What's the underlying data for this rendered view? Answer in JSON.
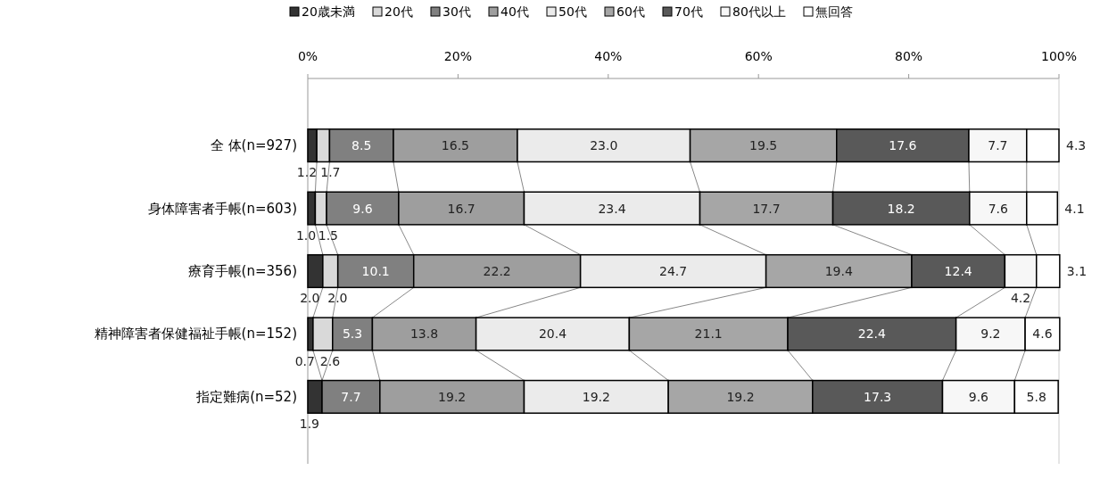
{
  "chart_data": {
    "type": "bar",
    "orientation": "horizontal",
    "stacked": true,
    "legend": "top",
    "categories": [
      "全 体(n=927)",
      "身体障害者手帳(n=603)",
      "療育手帳(n=356)",
      "精神障害者保健福祉手帳(n=152)",
      "指定難病(n=52)"
    ],
    "xlim": [
      0,
      100
    ],
    "xticks": [
      {
        "value": 0,
        "label": "0%"
      },
      {
        "value": 20,
        "label": "20%"
      },
      {
        "value": 40,
        "label": "40%"
      },
      {
        "value": 60,
        "label": "60%"
      },
      {
        "value": 80,
        "label": "80%"
      },
      {
        "value": 100,
        "label": "100%"
      }
    ],
    "series": [
      {
        "name": "20歳未満",
        "color": "#333333",
        "values": [
          1.2,
          1.0,
          2.0,
          0.7,
          1.9
        ],
        "value_labels": [
          "1.2",
          "1.0",
          "2.0",
          "0.7",
          "1.9"
        ]
      },
      {
        "name": "20代",
        "color": "#d9d9d9",
        "values": [
          1.7,
          1.5,
          2.0,
          2.6,
          null
        ],
        "value_labels": [
          "1.7",
          "1.5",
          "2.0",
          "2.6",
          null
        ]
      },
      {
        "name": "30代",
        "color": "#808080",
        "values": [
          8.5,
          9.6,
          10.1,
          5.3,
          7.7
        ],
        "value_labels": [
          "8.5",
          "9.6",
          "10.1",
          "5.3",
          "7.7"
        ]
      },
      {
        "name": "40代",
        "color": "#9e9e9e",
        "values": [
          16.5,
          16.7,
          22.2,
          13.8,
          19.2
        ],
        "value_labels": [
          "16.5",
          "16.7",
          "22.2",
          "13.8",
          "19.2"
        ]
      },
      {
        "name": "50代",
        "color": "#ebebeb",
        "values": [
          23.0,
          23.4,
          24.7,
          20.4,
          19.2
        ],
        "value_labels": [
          "23.0",
          "23.4",
          "24.7",
          "20.4",
          "19.2"
        ]
      },
      {
        "name": "60代",
        "color": "#a6a6a6",
        "values": [
          19.5,
          17.7,
          19.4,
          21.1,
          19.2
        ],
        "value_labels": [
          "19.5",
          "17.7",
          "19.4",
          "21.1",
          "19.2"
        ]
      },
      {
        "name": "70代",
        "color": "#595959",
        "values": [
          17.6,
          18.2,
          12.4,
          22.4,
          17.3
        ],
        "value_labels": [
          "17.6",
          "18.2",
          "12.4",
          "22.4",
          "17.3"
        ]
      },
      {
        "name": "80代以上",
        "color": "#f7f7f7",
        "values": [
          7.7,
          7.6,
          4.2,
          9.2,
          9.6
        ],
        "value_labels": [
          "7.7",
          "7.6",
          "4.2",
          "9.2",
          "9.6"
        ]
      },
      {
        "name": "無回答",
        "color": "#ffffff",
        "values": [
          4.3,
          4.1,
          3.1,
          4.6,
          5.8
        ],
        "value_labels": [
          "4.3",
          "4.1",
          "3.1",
          "4.6",
          "5.8"
        ]
      }
    ]
  }
}
